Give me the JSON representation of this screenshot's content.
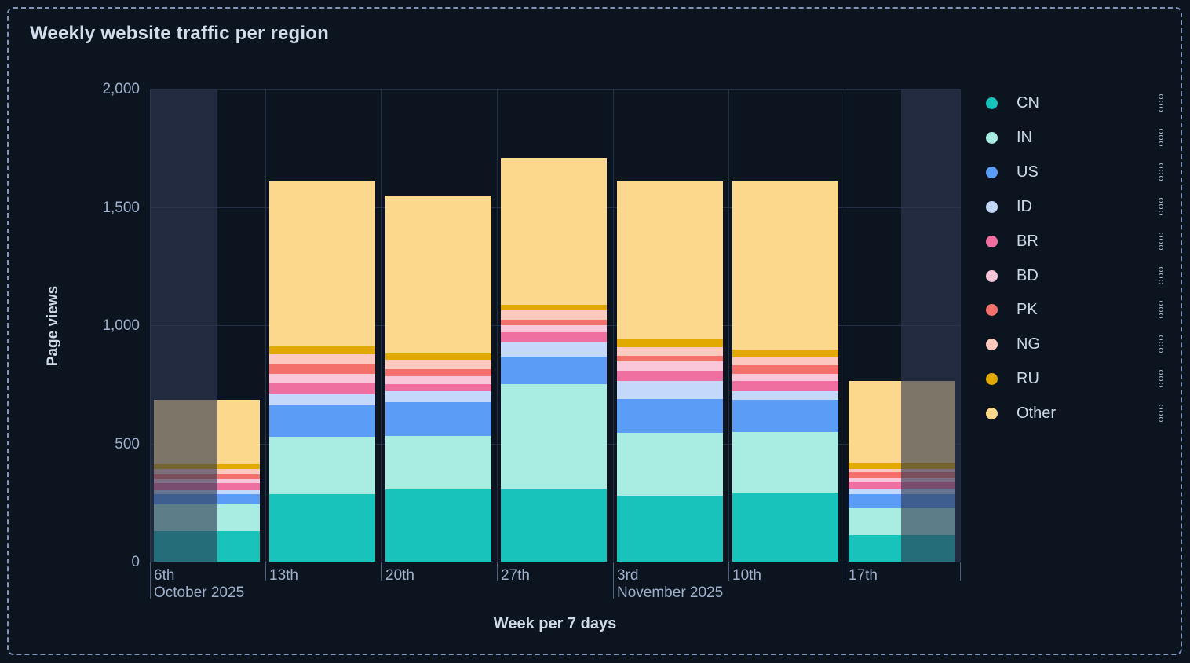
{
  "title": "Weekly website traffic per region",
  "chart_data": {
    "type": "bar",
    "stacked": true,
    "title": "Weekly website traffic per region",
    "xlabel": "Week per 7 days",
    "ylabel": "Page views",
    "ylim": [
      0,
      2000
    ],
    "grid": true,
    "legend_position": "right",
    "y_ticks": [
      0,
      500,
      1000,
      1500,
      2000
    ],
    "y_tick_labels": [
      "0",
      "500",
      "1,000",
      "1,500",
      "2,000"
    ],
    "categories": [
      "6th",
      "13th",
      "20th",
      "27th",
      "3rd",
      "10th",
      "17th"
    ],
    "category_months": [
      "October 2025",
      "",
      "",
      "",
      "November 2025",
      "",
      ""
    ],
    "series": [
      {
        "name": "CN",
        "color": "#17c3ba",
        "values": [
          133,
          290,
          308,
          313,
          282,
          291,
          116
        ]
      },
      {
        "name": "IN",
        "color": "#a9ece2",
        "values": [
          114,
          240,
          227,
          440,
          266,
          262,
          114
        ]
      },
      {
        "name": "US",
        "color": "#5b9cf7",
        "values": [
          41,
          133,
          144,
          116,
          144,
          135,
          58
        ]
      },
      {
        "name": "ID",
        "color": "#c3d8fa",
        "values": [
          17,
          51,
          46,
          61,
          75,
          37,
          25
        ]
      },
      {
        "name": "BR",
        "color": "#ee6fa0",
        "values": [
          31,
          44,
          28,
          44,
          44,
          41,
          30
        ]
      },
      {
        "name": "BD",
        "color": "#fac6da",
        "values": [
          16,
          41,
          33,
          28,
          38,
          30,
          15
        ]
      },
      {
        "name": "PK",
        "color": "#f4716b",
        "values": [
          20,
          39,
          30,
          25,
          25,
          39,
          24
        ]
      },
      {
        "name": "NG",
        "color": "#fdc8be",
        "values": [
          22,
          42,
          40,
          41,
          37,
          33,
          13
        ]
      },
      {
        "name": "RU",
        "color": "#e2aa00",
        "values": [
          22,
          35,
          27,
          22,
          33,
          33,
          26
        ]
      },
      {
        "name": "Other",
        "color": "#fbd88b",
        "values": [
          272,
          695,
          667,
          620,
          666,
          711,
          346
        ]
      }
    ],
    "totals": [
      688,
      1610,
      1550,
      1710,
      1610,
      1612,
      767
    ],
    "partial_week_regions": [
      {
        "column": 0,
        "side": "left",
        "fraction": 0.58
      },
      {
        "column": 6,
        "side": "right",
        "fraction": 0.51
      }
    ]
  },
  "legend": {
    "kebab_icon": "vertical-dots-menu"
  }
}
